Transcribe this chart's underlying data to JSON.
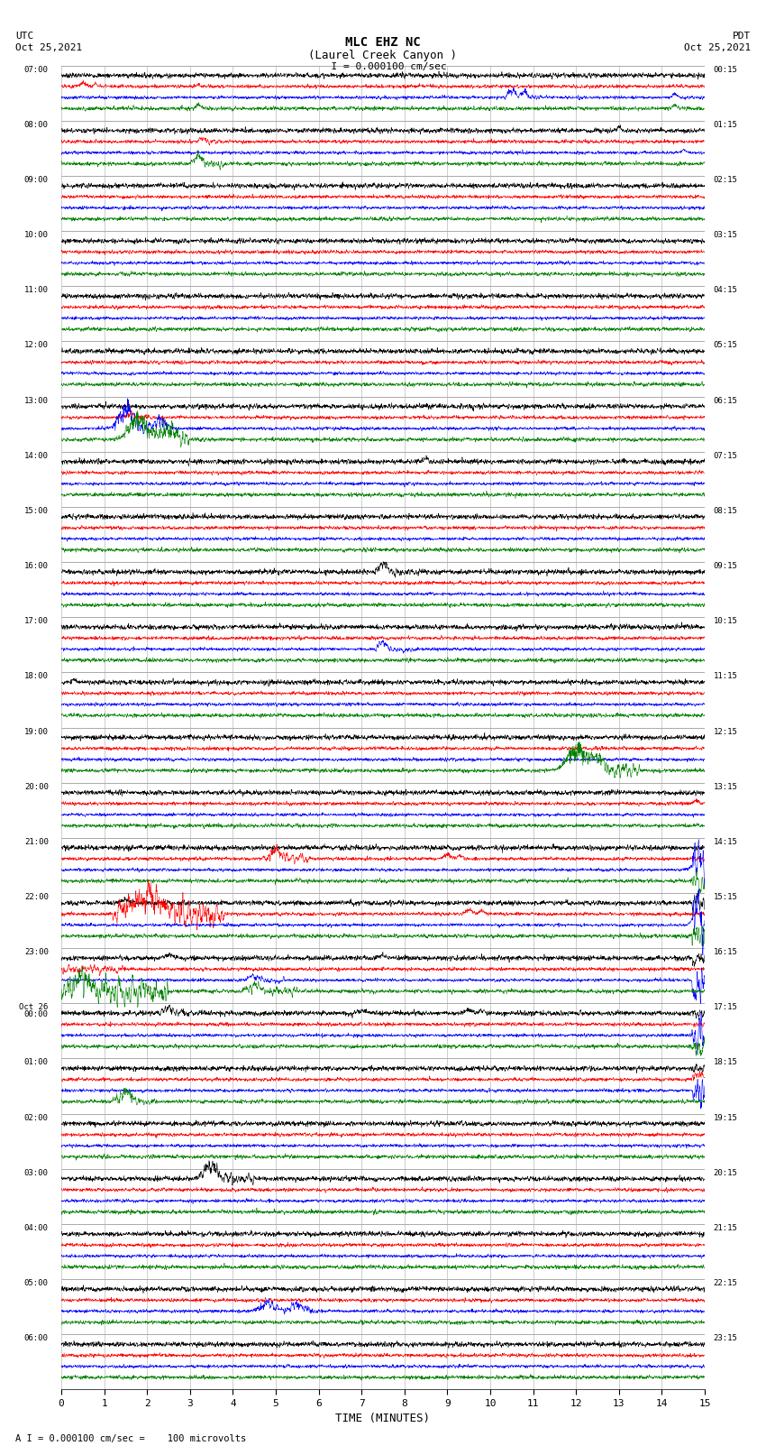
{
  "title_line1": "MLC EHZ NC",
  "title_line2": "(Laurel Creek Canyon )",
  "scale_label": "  I = 0.000100 cm/sec",
  "bottom_label": "A I = 0.000100 cm/sec =    100 microvolts",
  "utc_label": "UTC",
  "utc_date": "Oct 25,2021",
  "pdt_label": "PDT",
  "pdt_date": "Oct 25,2021",
  "xlabel": "TIME (MINUTES)",
  "left_times": [
    "07:00",
    "08:00",
    "09:00",
    "10:00",
    "11:00",
    "12:00",
    "13:00",
    "14:00",
    "15:00",
    "16:00",
    "17:00",
    "18:00",
    "19:00",
    "20:00",
    "21:00",
    "22:00",
    "23:00",
    "Oct 26\n00:00",
    "01:00",
    "02:00",
    "03:00",
    "04:00",
    "05:00",
    "06:00"
  ],
  "right_times": [
    "00:15",
    "01:15",
    "02:15",
    "03:15",
    "04:15",
    "05:15",
    "06:15",
    "07:15",
    "08:15",
    "09:15",
    "10:15",
    "11:15",
    "12:15",
    "13:15",
    "14:15",
    "15:15",
    "16:15",
    "17:15",
    "18:15",
    "19:15",
    "20:15",
    "21:15",
    "22:15",
    "23:15"
  ],
  "num_rows": 24,
  "minutes_per_row": 15,
  "x_ticks": [
    0,
    1,
    2,
    3,
    4,
    5,
    6,
    7,
    8,
    9,
    10,
    11,
    12,
    13,
    14,
    15
  ],
  "bg_color": "#ffffff",
  "line_colors": [
    "black",
    "red",
    "blue",
    "green"
  ],
  "noise_base_amp": 0.3
}
